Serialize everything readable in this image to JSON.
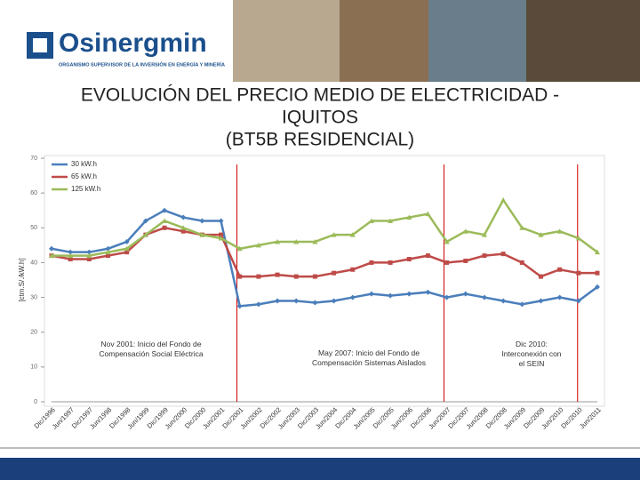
{
  "header": {
    "logo": "Osinergmin",
    "tagline": "ORGANISMO SUPERVISOR DE LA INVERSIÓN EN ENERGÍA Y MINERÍA"
  },
  "chart_data": {
    "type": "line",
    "title": [
      "EVOLUCIÓN DEL PRECIO MEDIO DE ELECTRICIDAD -",
      "IQUITOS",
      "(BT5B  RESIDENCIAL)"
    ],
    "y_label": "[ctm.S/./kW.h]",
    "categories": [
      "Dic/1996",
      "Jun/1997",
      "Dic/1997",
      "Jun/1998",
      "Dic/1998",
      "Jun/1999",
      "Dic/1999",
      "Jun/2000",
      "Dic/2000",
      "Jun/2001",
      "Dic/2001",
      "Jun/2002",
      "Dic/2002",
      "Jun/2003",
      "Dic/2003",
      "Jun/2004",
      "Dic/2004",
      "Jun/2005",
      "Dic/2005",
      "Jun/2006",
      "Dic/2006",
      "Jun/2007",
      "Dic/2007",
      "Jun/2008",
      "Dic/2008",
      "Jun/2009",
      "Dic/2009",
      "Jun/2010",
      "Dic/2010",
      "Jun/2011"
    ],
    "series": [
      {
        "name": "30 kW.h",
        "color": "#4a7ebb",
        "marker": "diamond",
        "values": [
          44,
          43,
          43,
          44,
          46,
          52,
          55,
          53,
          52,
          52,
          27.5,
          28,
          29,
          29,
          28.5,
          29,
          30,
          31,
          30.5,
          31,
          31.5,
          30,
          31,
          30,
          29,
          28,
          29,
          30,
          29,
          33
        ]
      },
      {
        "name": "65 kW.h",
        "color": "#be4b48",
        "marker": "square",
        "values": [
          42,
          41,
          41,
          42,
          43,
          48,
          50,
          49,
          48,
          48,
          36,
          36,
          36.5,
          36,
          36,
          37,
          38,
          40,
          40,
          41,
          42,
          40,
          40.5,
          42,
          42.5,
          40,
          36,
          38,
          37,
          37
        ]
      },
      {
        "name": "125 kW.h",
        "color": "#9bbb59",
        "marker": "triangle",
        "values": [
          42,
          42,
          42,
          43,
          44,
          48,
          52,
          50,
          48,
          47,
          44,
          45,
          46,
          46,
          46,
          48,
          48,
          52,
          52,
          53,
          54,
          46,
          49,
          48,
          58,
          50,
          48,
          49,
          47,
          43
        ]
      }
    ],
    "ylim": [
      0,
      70
    ],
    "yticks": [
      0,
      10,
      20,
      30,
      40,
      50,
      60,
      70
    ],
    "annotations": [
      "Nov 2001: Inicio del Fondo de Compensación Social Eléctrica",
      "May  2007: Inicio del Fondo de Compensación Sistemas Aislados",
      "Dic  2010: Interconexión con el SEIN"
    ]
  }
}
